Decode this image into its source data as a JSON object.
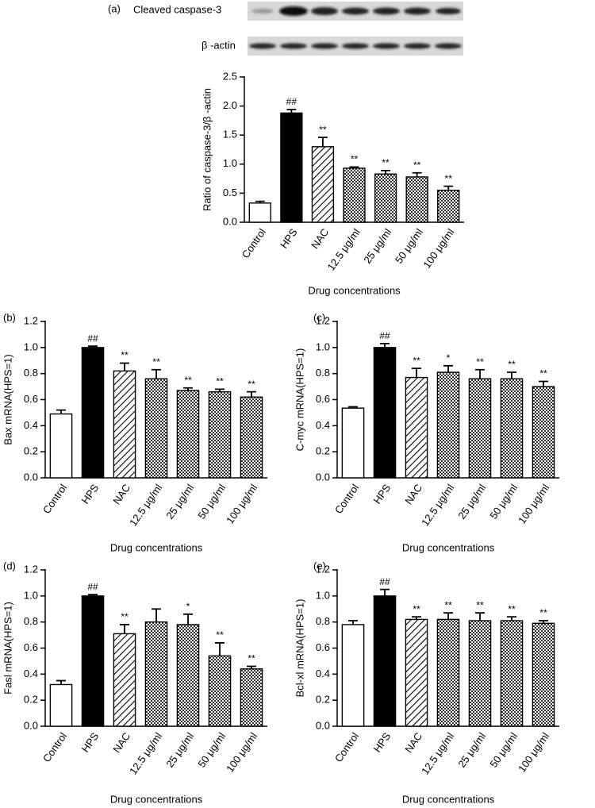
{
  "chart_data": [
    {
      "type": "bar",
      "panel": "(a)",
      "blot_labels": [
        "Cleaved caspase-3",
        "β -actin"
      ],
      "ylabel": "Ratio of caspase-3/β -actin",
      "xlabel": "Drug concentrations",
      "categories": [
        "Control",
        "HPS",
        "NAC",
        "12.5 μg/ml",
        "25 μg/ml",
        "50 μg/ml",
        "100 μg/ml"
      ],
      "values": [
        0.33,
        1.88,
        1.3,
        0.93,
        0.83,
        0.78,
        0.55
      ],
      "errors": [
        0.03,
        0.06,
        0.16,
        0.02,
        0.06,
        0.07,
        0.07
      ],
      "annotations": [
        null,
        "##",
        "**",
        "**",
        "**",
        "**",
        "**"
      ],
      "bar_styles": [
        "white",
        "black",
        "hatch",
        "dots",
        "dots",
        "dots",
        "dots"
      ],
      "ylim": [
        0,
        2.5
      ],
      "yticks": [
        {
          "value": 0,
          "label": "0.0"
        },
        0.5,
        {
          "value": 1,
          "label": "1.0"
        },
        1.5,
        {
          "value": 2,
          "label": "2.0"
        },
        2.5
      ]
    },
    {
      "type": "bar",
      "panel": "(b)",
      "ylabel": "Bax mRNA(HPS=1)",
      "xlabel": "Drug concentrations",
      "categories": [
        "Control",
        "HPS",
        "NAC",
        "12.5 μg/ml",
        "25 μg/ml",
        "50 μg/ml",
        "100 μg/ml"
      ],
      "values": [
        0.49,
        1.0,
        0.82,
        0.76,
        0.67,
        0.66,
        0.62
      ],
      "errors": [
        0.03,
        0.01,
        0.06,
        0.07,
        0.02,
        0.02,
        0.04
      ],
      "annotations": [
        null,
        "##",
        "**",
        "**",
        "**",
        "**",
        "**"
      ],
      "bar_styles": [
        "white",
        "black",
        "hatch",
        "dots",
        "dots",
        "dots",
        "dots"
      ],
      "ylim": [
        0,
        1.2
      ],
      "yticks": [
        {
          "value": 0,
          "label": "0.0"
        },
        0.2,
        0.4,
        0.6,
        0.8,
        {
          "value": 1,
          "label": "1.0"
        },
        1.2
      ]
    },
    {
      "type": "bar",
      "panel": "(c)",
      "ylabel": "C-myc mRNA(HPS=1)",
      "xlabel": "Drug concentrations",
      "categories": [
        "Control",
        "HPS",
        "NAC",
        "12.5 μg/ml",
        "25 μg/ml",
        "50 μg/ml",
        "100 μg/ml"
      ],
      "values": [
        0.535,
        1.0,
        0.77,
        0.81,
        0.76,
        0.76,
        0.7
      ],
      "errors": [
        0.01,
        0.03,
        0.07,
        0.05,
        0.07,
        0.05,
        0.04
      ],
      "annotations": [
        null,
        "##",
        "**",
        "*",
        "**",
        "**",
        "**"
      ],
      "bar_styles": [
        "white",
        "black",
        "hatch",
        "dots",
        "dots",
        "dots",
        "dots"
      ],
      "ylim": [
        0,
        1.2
      ],
      "yticks": [
        {
          "value": 0,
          "label": "0.0"
        },
        0.2,
        0.4,
        0.6,
        0.8,
        {
          "value": 1,
          "label": "1.0"
        },
        1.2
      ]
    },
    {
      "type": "bar",
      "panel": "(d)",
      "ylabel": "Fasl mRNA(HPS=1)",
      "xlabel": "Drug concentrations",
      "categories": [
        "Control",
        "HPS",
        "NAC",
        "12.5 μg/ml",
        "25 μg/ml",
        "50 μg/ml",
        "100 μg/ml"
      ],
      "values": [
        0.32,
        1.0,
        0.71,
        0.8,
        0.78,
        0.54,
        0.44
      ],
      "errors": [
        0.03,
        0.01,
        0.07,
        0.1,
        0.08,
        0.1,
        0.02
      ],
      "annotations": [
        null,
        "##",
        "**",
        null,
        "*",
        "**",
        "**"
      ],
      "bar_styles": [
        "white",
        "black",
        "hatch",
        "dots",
        "dots",
        "dots",
        "dots"
      ],
      "ylim": [
        0,
        1.2
      ],
      "yticks": [
        {
          "value": 0,
          "label": "0.0"
        },
        0.2,
        0.4,
        0.6,
        0.8,
        {
          "value": 1,
          "label": "1.0"
        },
        1.2
      ]
    },
    {
      "type": "bar",
      "panel": "(e)",
      "ylabel": "Bcl-xl mRNA(HPS=1)",
      "xlabel": "Drug concentrations",
      "categories": [
        "Control",
        "HPS",
        "NAC",
        "12.5 μg/ml",
        "25 μg/ml",
        "50 μg/ml",
        "100 μg/ml"
      ],
      "values": [
        0.78,
        1.0,
        0.82,
        0.82,
        0.81,
        0.81,
        0.79
      ],
      "errors": [
        0.03,
        0.05,
        0.02,
        0.05,
        0.06,
        0.03,
        0.02
      ],
      "annotations": [
        null,
        "##",
        "**",
        "**",
        "**",
        "**",
        "**"
      ],
      "bar_styles": [
        "white",
        "black",
        "hatch",
        "dots",
        "dots",
        "dots",
        "dots"
      ],
      "ylim": [
        0,
        1.2
      ],
      "yticks": [
        {
          "value": 0,
          "label": "0.0"
        },
        0.2,
        0.4,
        0.6,
        0.8,
        {
          "value": 1,
          "label": "1.0"
        },
        1.2
      ]
    }
  ]
}
